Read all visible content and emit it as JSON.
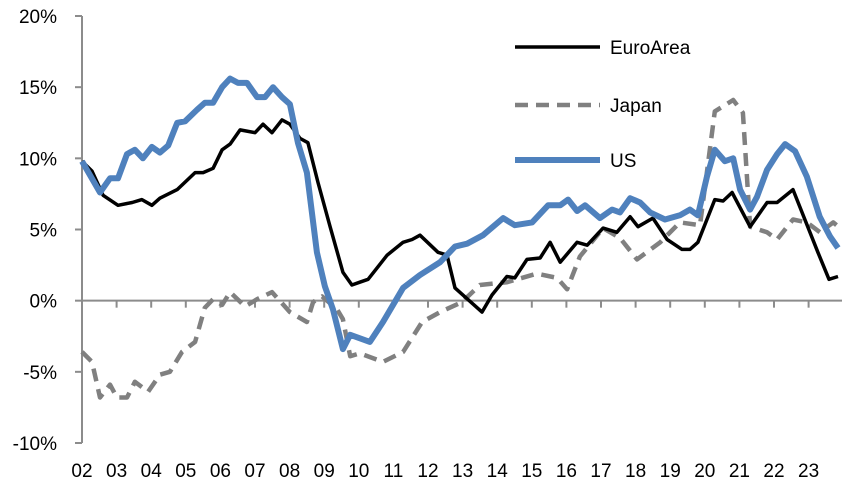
{
  "chart_data": {
    "type": "line",
    "title": "",
    "xlabel": "",
    "ylabel": "",
    "xlim": [
      2002,
      2023.95
    ],
    "ylim": [
      -10,
      20
    ],
    "y_ticks": [
      -10,
      -5,
      0,
      5,
      10,
      15,
      20
    ],
    "y_tick_labels": [
      "-10%",
      "-5%",
      "0%",
      "5%",
      "10%",
      "15%",
      "20%"
    ],
    "x_ticks": [
      2002,
      2003,
      2004,
      2005,
      2006,
      2007,
      2008,
      2009,
      2010,
      2011,
      2012,
      2013,
      2014,
      2015,
      2016,
      2017,
      2018,
      2019,
      2020,
      2021,
      2022,
      2023
    ],
    "x_tick_labels": [
      "02",
      "03",
      "04",
      "05",
      "06",
      "07",
      "08",
      "09",
      "10",
      "11",
      "12",
      "13",
      "14",
      "15",
      "16",
      "17",
      "18",
      "19",
      "20",
      "21",
      "22",
      "23"
    ],
    "grid": false,
    "legend_position": "top-right",
    "series": [
      {
        "name": "EuroArea",
        "color": "#000000",
        "style": "solid",
        "points": [
          [
            2002.0,
            9.8
          ],
          [
            2002.29,
            9.1
          ],
          [
            2002.61,
            7.4
          ],
          [
            2003.04,
            6.7
          ],
          [
            2003.45,
            6.9
          ],
          [
            2003.73,
            7.1
          ],
          [
            2004.02,
            6.7
          ],
          [
            2004.25,
            7.2
          ],
          [
            2004.75,
            7.8
          ],
          [
            2005.27,
            9.0
          ],
          [
            2005.5,
            9.0
          ],
          [
            2005.79,
            9.3
          ],
          [
            2006.05,
            10.6
          ],
          [
            2006.28,
            11.0
          ],
          [
            2006.57,
            12.0
          ],
          [
            2007.0,
            11.8
          ],
          [
            2007.23,
            12.4
          ],
          [
            2007.49,
            11.8
          ],
          [
            2007.78,
            12.7
          ],
          [
            2008.01,
            12.4
          ],
          [
            2008.3,
            11.4
          ],
          [
            2008.53,
            11.1
          ],
          [
            2008.82,
            8.3
          ],
          [
            2009.17,
            5.2
          ],
          [
            2009.54,
            2.0
          ],
          [
            2009.8,
            1.1
          ],
          [
            2010.03,
            1.3
          ],
          [
            2010.27,
            1.5
          ],
          [
            2010.82,
            3.2
          ],
          [
            2011.28,
            4.1
          ],
          [
            2011.54,
            4.3
          ],
          [
            2011.77,
            4.6
          ],
          [
            2012.29,
            3.4
          ],
          [
            2012.55,
            3.2
          ],
          [
            2012.78,
            0.9
          ],
          [
            2013.56,
            -0.8
          ],
          [
            2013.85,
            0.4
          ],
          [
            2014.28,
            1.7
          ],
          [
            2014.51,
            1.6
          ],
          [
            2014.86,
            2.9
          ],
          [
            2015.24,
            3.0
          ],
          [
            2015.53,
            4.1
          ],
          [
            2015.82,
            2.7
          ],
          [
            2016.31,
            4.1
          ],
          [
            2016.6,
            3.9
          ],
          [
            2017.06,
            5.1
          ],
          [
            2017.46,
            4.8
          ],
          [
            2017.84,
            5.9
          ],
          [
            2018.07,
            5.2
          ],
          [
            2018.5,
            5.8
          ],
          [
            2018.91,
            4.3
          ],
          [
            2019.34,
            3.6
          ],
          [
            2019.57,
            3.6
          ],
          [
            2019.8,
            4.1
          ],
          [
            2020.29,
            7.1
          ],
          [
            2020.53,
            7.0
          ],
          [
            2020.79,
            7.6
          ],
          [
            2021.31,
            5.2
          ],
          [
            2021.8,
            6.9
          ],
          [
            2022.09,
            6.9
          ],
          [
            2022.55,
            7.8
          ],
          [
            2023.27,
            3.4
          ],
          [
            2023.59,
            1.5
          ],
          [
            2023.85,
            1.7
          ]
        ]
      },
      {
        "name": "Japan",
        "color": "#808080",
        "style": "dashed",
        "points": [
          [
            2002.0,
            -3.6
          ],
          [
            2002.29,
            -4.3
          ],
          [
            2002.52,
            -6.8
          ],
          [
            2002.81,
            -5.9
          ],
          [
            2003.01,
            -6.8
          ],
          [
            2003.3,
            -6.8
          ],
          [
            2003.53,
            -5.7
          ],
          [
            2003.91,
            -6.4
          ],
          [
            2004.25,
            -5.2
          ],
          [
            2004.54,
            -5.0
          ],
          [
            2004.89,
            -3.6
          ],
          [
            2005.27,
            -2.9
          ],
          [
            2005.55,
            -0.5
          ],
          [
            2005.79,
            0.1
          ],
          [
            2006.05,
            -0.3
          ],
          [
            2006.28,
            0.6
          ],
          [
            2006.71,
            -0.4
          ],
          [
            2007.06,
            0.1
          ],
          [
            2007.49,
            0.6
          ],
          [
            2008.01,
            -0.8
          ],
          [
            2008.5,
            -1.5
          ],
          [
            2008.68,
            -0.1
          ],
          [
            2008.94,
            0.3
          ],
          [
            2009.37,
            -0.6
          ],
          [
            2009.54,
            -1.3
          ],
          [
            2009.75,
            -3.9
          ],
          [
            2010.03,
            -3.7
          ],
          [
            2010.7,
            -4.3
          ],
          [
            2011.28,
            -3.6
          ],
          [
            2011.83,
            -1.5
          ],
          [
            2012.35,
            -0.8
          ],
          [
            2012.98,
            -0.1
          ],
          [
            2013.5,
            1.1
          ],
          [
            2014.28,
            1.3
          ],
          [
            2015.15,
            1.9
          ],
          [
            2015.73,
            1.6
          ],
          [
            2016.02,
            0.8
          ],
          [
            2016.39,
            3.1
          ],
          [
            2017.06,
            5.1
          ],
          [
            2017.55,
            4.4
          ],
          [
            2018.04,
            2.9
          ],
          [
            2018.71,
            4.1
          ],
          [
            2019.28,
            5.5
          ],
          [
            2019.86,
            5.3
          ],
          [
            2020.29,
            13.3
          ],
          [
            2020.82,
            14.1
          ],
          [
            2021.1,
            13.2
          ],
          [
            2021.31,
            5.2
          ],
          [
            2021.8,
            4.8
          ],
          [
            2022.09,
            4.3
          ],
          [
            2022.55,
            5.7
          ],
          [
            2022.95,
            5.5
          ],
          [
            2023.33,
            4.8
          ],
          [
            2023.71,
            5.5
          ],
          [
            2023.91,
            5.1
          ]
        ]
      },
      {
        "name": "US",
        "color": "#4F81BD",
        "style": "solid",
        "points": [
          [
            2002.0,
            9.8
          ],
          [
            2002.52,
            7.6
          ],
          [
            2002.81,
            8.6
          ],
          [
            2003.04,
            8.6
          ],
          [
            2003.3,
            10.3
          ],
          [
            2003.53,
            10.6
          ],
          [
            2003.76,
            10.0
          ],
          [
            2004.02,
            10.8
          ],
          [
            2004.25,
            10.4
          ],
          [
            2004.49,
            10.9
          ],
          [
            2004.75,
            12.5
          ],
          [
            2004.98,
            12.6
          ],
          [
            2005.32,
            13.4
          ],
          [
            2005.55,
            13.9
          ],
          [
            2005.79,
            13.9
          ],
          [
            2006.05,
            15.0
          ],
          [
            2006.28,
            15.6
          ],
          [
            2006.51,
            15.3
          ],
          [
            2006.77,
            15.3
          ],
          [
            2007.06,
            14.3
          ],
          [
            2007.29,
            14.3
          ],
          [
            2007.52,
            15.0
          ],
          [
            2007.78,
            14.3
          ],
          [
            2008.01,
            13.8
          ],
          [
            2008.24,
            11.1
          ],
          [
            2008.5,
            9.0
          ],
          [
            2008.79,
            3.4
          ],
          [
            2009.02,
            1.0
          ],
          [
            2009.25,
            -0.6
          ],
          [
            2009.54,
            -3.4
          ],
          [
            2009.75,
            -2.4
          ],
          [
            2010.32,
            -2.9
          ],
          [
            2010.7,
            -1.5
          ],
          [
            2011.28,
            0.9
          ],
          [
            2011.77,
            1.8
          ],
          [
            2012.35,
            2.7
          ],
          [
            2012.78,
            3.8
          ],
          [
            2013.13,
            4.0
          ],
          [
            2013.59,
            4.6
          ],
          [
            2014.17,
            5.8
          ],
          [
            2014.51,
            5.3
          ],
          [
            2015.01,
            5.5
          ],
          [
            2015.47,
            6.7
          ],
          [
            2015.82,
            6.7
          ],
          [
            2016.05,
            7.1
          ],
          [
            2016.31,
            6.3
          ],
          [
            2016.54,
            6.7
          ],
          [
            2016.97,
            5.8
          ],
          [
            2017.32,
            6.4
          ],
          [
            2017.55,
            6.2
          ],
          [
            2017.84,
            7.2
          ],
          [
            2018.13,
            6.9
          ],
          [
            2018.42,
            6.2
          ],
          [
            2018.85,
            5.7
          ],
          [
            2019.28,
            6.0
          ],
          [
            2019.57,
            6.4
          ],
          [
            2019.8,
            6.0
          ],
          [
            2020.06,
            8.7
          ],
          [
            2020.29,
            10.6
          ],
          [
            2020.58,
            9.8
          ],
          [
            2020.82,
            10.0
          ],
          [
            2021.02,
            7.8
          ],
          [
            2021.31,
            6.4
          ],
          [
            2021.51,
            7.3
          ],
          [
            2021.8,
            9.2
          ],
          [
            2022.09,
            10.3
          ],
          [
            2022.32,
            11.0
          ],
          [
            2022.61,
            10.5
          ],
          [
            2022.95,
            8.7
          ],
          [
            2023.32,
            5.9
          ],
          [
            2023.62,
            4.5
          ],
          [
            2023.85,
            3.7
          ]
        ]
      }
    ]
  }
}
